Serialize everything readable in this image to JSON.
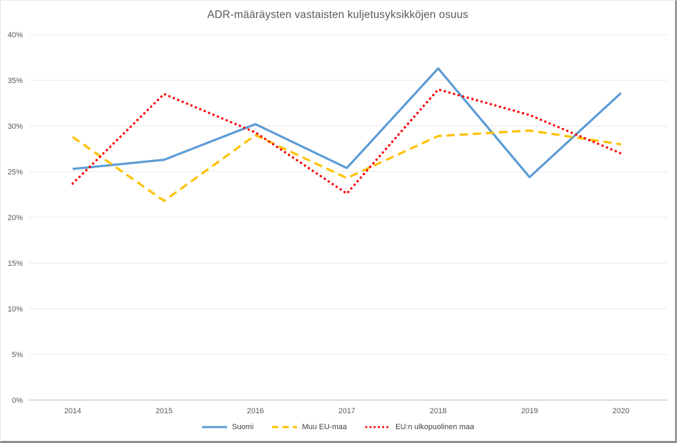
{
  "chart_data": {
    "type": "line",
    "title": "ADR-määräysten vastaisten kuljetusyksikköjen osuus",
    "categories": [
      "2014",
      "2015",
      "2016",
      "2017",
      "2018",
      "2019",
      "2020"
    ],
    "series": [
      {
        "name": "Suomi",
        "color": "#5B9BD5",
        "line_style": "solid",
        "values": [
          25.3,
          26.3,
          30.2,
          25.4,
          36.3,
          24.4,
          33.6
        ]
      },
      {
        "name": "Muu EU-maa",
        "color": "#FFC000",
        "line_style": "dashed",
        "values": [
          28.8,
          21.8,
          29.0,
          24.3,
          28.9,
          29.5,
          28.0
        ]
      },
      {
        "name": "EU:n ulkopuolinen maa",
        "color": "#FF0000",
        "line_style": "dotted",
        "values": [
          23.7,
          33.5,
          29.3,
          22.6,
          34.0,
          31.2,
          27.0
        ]
      }
    ],
    "xlabel": "",
    "ylabel": "",
    "ylim": [
      0,
      40
    ],
    "ytick_step": 5,
    "ytick_labels": [
      "0%",
      "5%",
      "10%",
      "15%",
      "20%",
      "25%",
      "30%",
      "35%",
      "40%"
    ],
    "grid": true,
    "legend_position": "bottom",
    "colors": {
      "grid": "#E7E7E7",
      "axis": "#B7B7B7",
      "tick_label": "#595959",
      "title": "#595959",
      "legend_text": "#404040"
    }
  }
}
